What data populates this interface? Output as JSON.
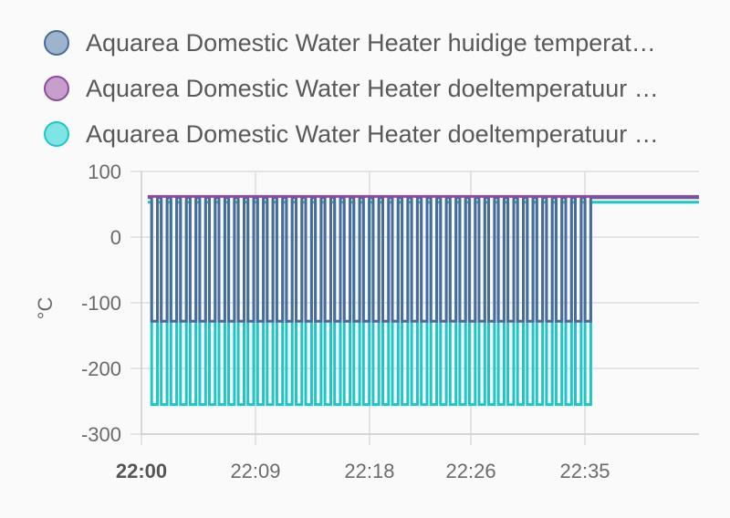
{
  "legend": {
    "items": [
      {
        "label": "Aquarea Domestic Water Heater huidige temperat…",
        "fill": "#9eb4cc",
        "stroke": "#4a6b99"
      },
      {
        "label": "Aquarea Domestic Water Heater doeltemperatuur …",
        "fill": "#c89fcc",
        "stroke": "#8e4a9c"
      },
      {
        "label": "Aquarea Domestic Water Heater doeltemperatuur …",
        "fill": "#7ee4e4",
        "stroke": "#1ec6c6"
      }
    ]
  },
  "chart_data": {
    "type": "line",
    "step": true,
    "ylabel": "°C",
    "ylim": [
      -300,
      100
    ],
    "y_ticks": [
      100,
      0,
      -100,
      -200,
      -300
    ],
    "x_ticks": [
      {
        "label": "22:00",
        "bold": true
      },
      {
        "label": "22:09",
        "bold": false
      },
      {
        "label": "22:18",
        "bold": false
      },
      {
        "label": "22:26",
        "bold": false
      },
      {
        "label": "22:35",
        "bold": false
      }
    ],
    "x_range_minutes": [
      0,
      44
    ],
    "x_tick_minutes": [
      0,
      9,
      18,
      26,
      35
    ],
    "oscillation_end_minutes": 35.8,
    "grid": true,
    "legend_position": "top",
    "series": [
      {
        "name": "Aquarea Domestic Water Heater huidige temperat…",
        "color": "#4a6b99",
        "high": 60,
        "low": -128,
        "end": 60,
        "period_minutes": 0.76
      },
      {
        "name": "Aquarea Domestic Water Heater doeltemperatuur …",
        "color": "#8e4a9c",
        "high": 62,
        "low": 62,
        "end": 62,
        "period_minutes": 0.76
      },
      {
        "name": "Aquarea Domestic Water Heater doeltemperatuur …",
        "color": "#1ec6c6",
        "high": 53,
        "low": -255,
        "end": 53,
        "period_minutes": 0.76
      }
    ]
  }
}
